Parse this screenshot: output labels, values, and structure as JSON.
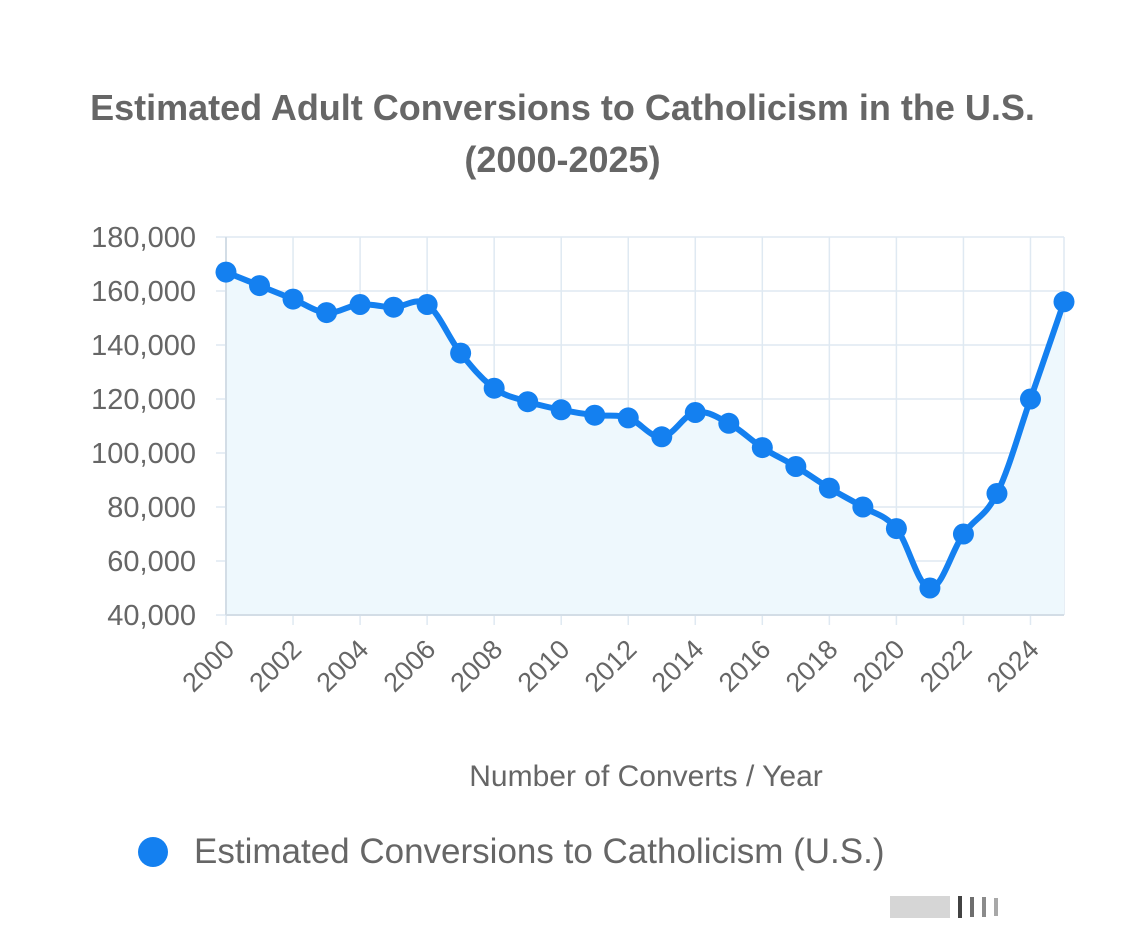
{
  "chart_data": {
    "type": "line",
    "title": "Estimated Adult Conversions to Catholicism in the U.S. (2000-2025)",
    "xlabel": "Number of Converts / Year",
    "ylabel": "",
    "x": [
      2000,
      2001,
      2002,
      2003,
      2004,
      2005,
      2006,
      2007,
      2008,
      2009,
      2010,
      2011,
      2012,
      2013,
      2014,
      2015,
      2016,
      2017,
      2018,
      2019,
      2020,
      2021,
      2022,
      2023,
      2024,
      2025
    ],
    "x_tick_labels": [
      "2000",
      "2002",
      "2004",
      "2006",
      "2008",
      "2010",
      "2012",
      "2014",
      "2016",
      "2018",
      "2020",
      "2022",
      "2024"
    ],
    "ylim": [
      40000,
      180000
    ],
    "y_ticks": [
      40000,
      60000,
      80000,
      100000,
      120000,
      140000,
      160000,
      180000
    ],
    "y_tick_labels": [
      "40,000",
      "60,000",
      "80,000",
      "100,000",
      "120,000",
      "140,000",
      "160,000",
      "180,000"
    ],
    "series": [
      {
        "name": "Estimated Conversions to Catholicism (U.S.)",
        "color": "#1480f0",
        "values": [
          167000,
          162000,
          157000,
          152000,
          155000,
          154000,
          155000,
          137000,
          124000,
          119000,
          116000,
          114000,
          113000,
          106000,
          115000,
          111000,
          102000,
          95000,
          87000,
          80000,
          72000,
          50000,
          70000,
          85000,
          120000,
          156000
        ]
      }
    ],
    "grid": true,
    "legend_position": "bottom",
    "fill_color": "#eef8fd",
    "grid_color": "#dfe9f2"
  }
}
